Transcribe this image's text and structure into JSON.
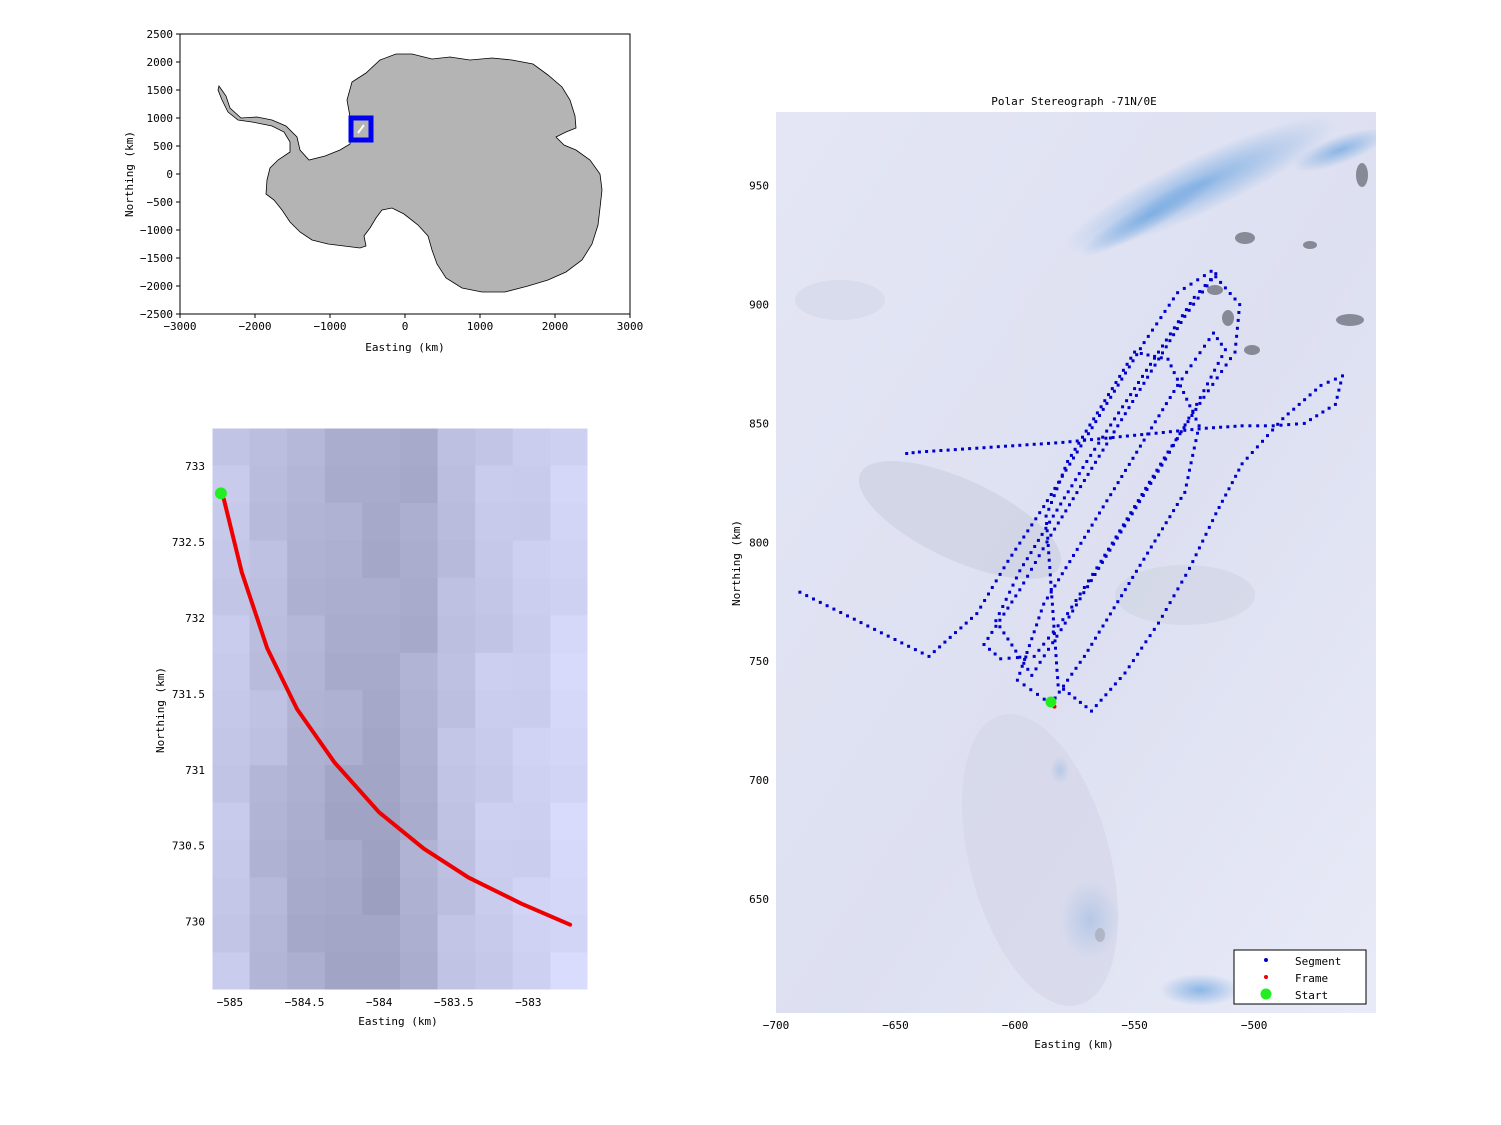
{
  "colors": {
    "land": "#b4b4b4",
    "coast": "#000000",
    "box": "#0000ee",
    "track": "#0000cc",
    "frame": "#ee0000",
    "start": "#22ee22",
    "ice": "#dfe2f2",
    "ice_blue": "#7fb3e6"
  },
  "chart_data": [
    {
      "id": "overview",
      "type": "scatter",
      "title": "",
      "xlabel": "Easting (km)",
      "ylabel": "Northing (km)",
      "xlim": [
        -3000,
        3000
      ],
      "ylim": [
        -2500,
        2500
      ],
      "xticks": [
        -3000,
        -2000,
        -1000,
        0,
        1000,
        2000,
        3000
      ],
      "xtick_labels": [
        "−3000",
        "−2000",
        "−1000",
        "0",
        "1000",
        "2000",
        "3000"
      ],
      "yticks": [
        2500,
        2000,
        1500,
        1000,
        500,
        0,
        -500,
        -1000,
        -1500,
        -2000,
        -2500
      ],
      "ytick_labels": [
        "2500",
        "2000",
        "1500",
        "1000",
        "500",
        "0",
        "−500",
        "−1000",
        "−1500",
        "−2000",
        "−2500"
      ],
      "grid": false,
      "background": "Antarctica outline (gray land)",
      "highlight_box": {
        "x": [
          -700,
          -450
        ],
        "y": [
          650,
          950
        ]
      }
    },
    {
      "id": "frame-detail",
      "type": "line",
      "title": "",
      "xlabel": "Easting (km)",
      "ylabel": "Northing (km)",
      "xlim": [
        -585.12,
        -582.6
      ],
      "ylim": [
        729.55,
        733.25
      ],
      "xticks": [
        -585,
        -584.5,
        -584,
        -583.5,
        -583
      ],
      "xtick_labels": [
        "−585",
        "−584.5",
        "−584",
        "−583.5",
        "−583"
      ],
      "yticks": [
        733,
        732.5,
        732,
        731.5,
        731,
        730.5,
        730
      ],
      "ytick_labels": [
        "733",
        "732.5",
        "732",
        "731.5",
        "731",
        "730.5",
        "730"
      ],
      "grid": false,
      "background": "satellite image (pixelated)",
      "series": [
        {
          "kind": "frame",
          "x": [
            -585.04,
            -584.92,
            -584.75,
            -584.55,
            -584.3,
            -584.0,
            -583.7,
            -583.4,
            -583.05,
            -582.72
          ],
          "y": [
            732.78,
            732.3,
            731.8,
            731.4,
            731.05,
            730.72,
            730.48,
            730.29,
            730.12,
            729.98
          ]
        },
        {
          "kind": "start",
          "x": [
            -585.06
          ],
          "y": [
            732.82
          ]
        }
      ]
    },
    {
      "id": "segment-map",
      "type": "scatter",
      "title": "Polar Stereograph -71N/0E",
      "xlabel": "Easting (km)",
      "ylabel": "Northing (km)",
      "xlim": [
        -700,
        -449
      ],
      "ylim": [
        602,
        981
      ],
      "xticks": [
        -700,
        -650,
        -600,
        -550,
        -500
      ],
      "xtick_labels": [
        "−700",
        "−650",
        "−600",
        "−550",
        "−500"
      ],
      "yticks": [
        950,
        900,
        850,
        800,
        750,
        700,
        650
      ],
      "ytick_labels": [
        "950",
        "900",
        "850",
        "800",
        "750",
        "700",
        "650"
      ],
      "grid": false,
      "legend": {
        "placement": "bottom-right",
        "entries": [
          "Segment",
          "Frame",
          "Start"
        ]
      },
      "series": [
        {
          "kind": "segment",
          "x": [
            -690,
            -636,
            -616,
            -603,
            -588,
            -574,
            -560,
            -546,
            -532,
            -518,
            -506,
            -508,
            -521,
            -536,
            -550,
            -564,
            -578,
            -592,
            -606,
            -613,
            -598,
            -585,
            -571,
            -557,
            -543,
            -529,
            -516,
            -525,
            -540,
            -555,
            -570,
            -584,
            -598,
            -608,
            -593,
            -579,
            -565,
            -551,
            -537,
            -524,
            -512,
            -517,
            -532,
            -546,
            -560,
            -574,
            -588,
            -599,
            -585,
            -571,
            -557,
            -543,
            -529,
            -523,
            -536,
            -550,
            -564,
            -578,
            -587,
            -582,
            -568,
            -554,
            -540,
            -527,
            -516,
            -505,
            -488,
            -472,
            -463,
            -466,
            -479,
            -492,
            -505,
            -520,
            -550,
            -580,
            -610,
            -640,
            -648
          ],
          "y": [
            779,
            752,
            770,
            792,
            815,
            838,
            861,
            884,
            905,
            914,
            900,
            880,
            861,
            838,
            815,
            792,
            770,
            752,
            751,
            757,
            780,
            803,
            826,
            849,
            872,
            895,
            913,
            903,
            880,
            857,
            834,
            811,
            788,
            767,
            744,
            766,
            789,
            812,
            835,
            858,
            881,
            888,
            866,
            843,
            820,
            797,
            774,
            742,
            732,
            752,
            775,
            798,
            821,
            849,
            877,
            880,
            857,
            834,
            811,
            740,
            729,
            745,
            766,
            789,
            812,
            833,
            852,
            866,
            870,
            858,
            850,
            849,
            849,
            848,
            845,
            842,
            840,
            838,
            837
          ]
        },
        {
          "kind": "frame",
          "x": [
            -583.5
          ],
          "y": [
            730.9
          ]
        },
        {
          "kind": "start",
          "x": [
            -585
          ],
          "y": [
            732.8
          ]
        }
      ]
    }
  ]
}
